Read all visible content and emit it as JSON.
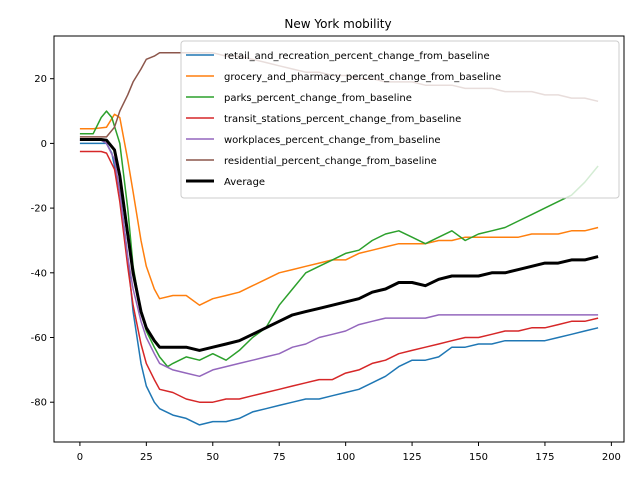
{
  "chart_data": {
    "type": "line",
    "title": "New York mobility",
    "xlabel": "",
    "ylabel": "",
    "xlim": [
      -9.75,
      204.75
    ],
    "ylim": [
      -92.3,
      33.2
    ],
    "xticks": [
      0,
      25,
      50,
      75,
      100,
      125,
      150,
      175,
      200
    ],
    "yticks": [
      -80,
      -60,
      -40,
      -20,
      0,
      20
    ],
    "grid": false,
    "legend_position": "top-right",
    "series": [
      {
        "name": "retail_and_recreation_percent_change_from_baseline",
        "color": "#1f77b4",
        "points": [
          [
            0,
            0
          ],
          [
            10,
            0
          ],
          [
            12,
            -3
          ],
          [
            15,
            -15
          ],
          [
            18,
            -35
          ],
          [
            20,
            -52
          ],
          [
            23,
            -68
          ],
          [
            25,
            -75
          ],
          [
            28,
            -80
          ],
          [
            30,
            -82
          ],
          [
            35,
            -84
          ],
          [
            40,
            -85
          ],
          [
            45,
            -87
          ],
          [
            50,
            -86
          ],
          [
            55,
            -86
          ],
          [
            60,
            -85
          ],
          [
            65,
            -83
          ],
          [
            70,
            -82
          ],
          [
            75,
            -81
          ],
          [
            80,
            -80
          ],
          [
            85,
            -79
          ],
          [
            90,
            -79
          ],
          [
            95,
            -78
          ],
          [
            100,
            -77
          ],
          [
            105,
            -76
          ],
          [
            110,
            -74
          ],
          [
            115,
            -72
          ],
          [
            120,
            -69
          ],
          [
            125,
            -67
          ],
          [
            130,
            -67
          ],
          [
            135,
            -66
          ],
          [
            140,
            -63
          ],
          [
            145,
            -63
          ],
          [
            150,
            -62
          ],
          [
            155,
            -62
          ],
          [
            160,
            -61
          ],
          [
            165,
            -61
          ],
          [
            170,
            -61
          ],
          [
            175,
            -61
          ],
          [
            180,
            -60
          ],
          [
            185,
            -59
          ],
          [
            190,
            -58
          ],
          [
            195,
            -57
          ]
        ]
      },
      {
        "name": "grocery_and_pharmacy_percent_change_from_baseline",
        "color": "#ff7f0e",
        "points": [
          [
            0,
            4.5
          ],
          [
            5,
            4.5
          ],
          [
            10,
            5
          ],
          [
            13,
            9
          ],
          [
            15,
            8
          ],
          [
            18,
            -5
          ],
          [
            20,
            -15
          ],
          [
            23,
            -30
          ],
          [
            25,
            -38
          ],
          [
            28,
            -45
          ],
          [
            30,
            -48
          ],
          [
            35,
            -47
          ],
          [
            40,
            -47
          ],
          [
            45,
            -50
          ],
          [
            50,
            -48
          ],
          [
            55,
            -47
          ],
          [
            60,
            -46
          ],
          [
            65,
            -44
          ],
          [
            70,
            -42
          ],
          [
            75,
            -40
          ],
          [
            80,
            -39
          ],
          [
            85,
            -38
          ],
          [
            90,
            -37
          ],
          [
            95,
            -36
          ],
          [
            100,
            -36
          ],
          [
            105,
            -34
          ],
          [
            110,
            -33
          ],
          [
            115,
            -32
          ],
          [
            120,
            -31
          ],
          [
            125,
            -31
          ],
          [
            130,
            -31
          ],
          [
            135,
            -30
          ],
          [
            140,
            -30
          ],
          [
            145,
            -29
          ],
          [
            150,
            -29
          ],
          [
            155,
            -29
          ],
          [
            160,
            -29
          ],
          [
            165,
            -29
          ],
          [
            170,
            -28
          ],
          [
            175,
            -28
          ],
          [
            180,
            -28
          ],
          [
            185,
            -27
          ],
          [
            190,
            -27
          ],
          [
            195,
            -26
          ]
        ]
      },
      {
        "name": "parks_percent_change_from_baseline",
        "color": "#2ca02c",
        "points": [
          [
            0,
            3
          ],
          [
            5,
            3
          ],
          [
            8,
            8
          ],
          [
            10,
            10
          ],
          [
            12,
            8
          ],
          [
            15,
            0
          ],
          [
            18,
            -20
          ],
          [
            20,
            -38
          ],
          [
            23,
            -52
          ],
          [
            25,
            -58
          ],
          [
            28,
            -63
          ],
          [
            30,
            -66
          ],
          [
            33,
            -69
          ],
          [
            35,
            -68
          ],
          [
            40,
            -66
          ],
          [
            45,
            -67
          ],
          [
            50,
            -65
          ],
          [
            55,
            -67
          ],
          [
            60,
            -64
          ],
          [
            65,
            -60
          ],
          [
            70,
            -57
          ],
          [
            75,
            -50
          ],
          [
            80,
            -45
          ],
          [
            85,
            -40
          ],
          [
            90,
            -38
          ],
          [
            95,
            -36
          ],
          [
            100,
            -34
          ],
          [
            105,
            -33
          ],
          [
            110,
            -30
          ],
          [
            115,
            -28
          ],
          [
            120,
            -27
          ],
          [
            125,
            -29
          ],
          [
            130,
            -31
          ],
          [
            135,
            -29
          ],
          [
            140,
            -27
          ],
          [
            145,
            -30
          ],
          [
            150,
            -28
          ],
          [
            155,
            -27
          ],
          [
            160,
            -26
          ],
          [
            165,
            -24
          ],
          [
            170,
            -22
          ],
          [
            175,
            -20
          ],
          [
            180,
            -18
          ],
          [
            185,
            -16
          ],
          [
            190,
            -12
          ],
          [
            195,
            -7
          ]
        ]
      },
      {
        "name": "transit_stations_percent_change_from_baseline",
        "color": "#d62728",
        "points": [
          [
            0,
            -2.5
          ],
          [
            8,
            -2.5
          ],
          [
            10,
            -3
          ],
          [
            13,
            -8
          ],
          [
            15,
            -18
          ],
          [
            18,
            -38
          ],
          [
            20,
            -50
          ],
          [
            23,
            -62
          ],
          [
            25,
            -68
          ],
          [
            28,
            -73
          ],
          [
            30,
            -76
          ],
          [
            35,
            -77
          ],
          [
            40,
            -79
          ],
          [
            45,
            -80
          ],
          [
            50,
            -80
          ],
          [
            55,
            -79
          ],
          [
            60,
            -79
          ],
          [
            65,
            -78
          ],
          [
            70,
            -77
          ],
          [
            75,
            -76
          ],
          [
            80,
            -75
          ],
          [
            85,
            -74
          ],
          [
            90,
            -73
          ],
          [
            95,
            -73
          ],
          [
            100,
            -71
          ],
          [
            105,
            -70
          ],
          [
            110,
            -68
          ],
          [
            115,
            -67
          ],
          [
            120,
            -65
          ],
          [
            125,
            -64
          ],
          [
            130,
            -63
          ],
          [
            135,
            -62
          ],
          [
            140,
            -61
          ],
          [
            145,
            -60
          ],
          [
            150,
            -60
          ],
          [
            155,
            -59
          ],
          [
            160,
            -58
          ],
          [
            165,
            -58
          ],
          [
            170,
            -57
          ],
          [
            175,
            -57
          ],
          [
            180,
            -56
          ],
          [
            185,
            -55
          ],
          [
            190,
            -55
          ],
          [
            195,
            -54
          ]
        ]
      },
      {
        "name": "workplaces_percent_change_from_baseline",
        "color": "#9467bd",
        "points": [
          [
            0,
            1
          ],
          [
            8,
            1
          ],
          [
            10,
            0
          ],
          [
            13,
            -5
          ],
          [
            15,
            -15
          ],
          [
            18,
            -35
          ],
          [
            20,
            -45
          ],
          [
            23,
            -55
          ],
          [
            25,
            -60
          ],
          [
            28,
            -65
          ],
          [
            30,
            -68
          ],
          [
            35,
            -70
          ],
          [
            40,
            -71
          ],
          [
            45,
            -72
          ],
          [
            50,
            -70
          ],
          [
            55,
            -69
          ],
          [
            60,
            -68
          ],
          [
            65,
            -67
          ],
          [
            70,
            -66
          ],
          [
            75,
            -65
          ],
          [
            80,
            -63
          ],
          [
            85,
            -62
          ],
          [
            90,
            -60
          ],
          [
            95,
            -59
          ],
          [
            100,
            -58
          ],
          [
            105,
            -56
          ],
          [
            110,
            -55
          ],
          [
            115,
            -54
          ],
          [
            120,
            -54
          ],
          [
            125,
            -54
          ],
          [
            130,
            -54
          ],
          [
            135,
            -53
          ],
          [
            140,
            -53
          ],
          [
            145,
            -53
          ],
          [
            150,
            -53
          ],
          [
            155,
            -53
          ],
          [
            160,
            -53
          ],
          [
            165,
            -53
          ],
          [
            170,
            -53
          ],
          [
            175,
            -53
          ],
          [
            180,
            -53
          ],
          [
            185,
            -53
          ],
          [
            190,
            -53
          ],
          [
            195,
            -53
          ]
        ]
      },
      {
        "name": "residential_percent_change_from_baseline",
        "color": "#8c564b",
        "points": [
          [
            0,
            2
          ],
          [
            5,
            2
          ],
          [
            10,
            2
          ],
          [
            13,
            5
          ],
          [
            15,
            10
          ],
          [
            18,
            15
          ],
          [
            20,
            19
          ],
          [
            23,
            23
          ],
          [
            25,
            26
          ],
          [
            28,
            27
          ],
          [
            30,
            28
          ],
          [
            35,
            28
          ],
          [
            40,
            28
          ],
          [
            45,
            28
          ],
          [
            50,
            28
          ],
          [
            55,
            27
          ],
          [
            60,
            27
          ],
          [
            65,
            26
          ],
          [
            70,
            25
          ],
          [
            75,
            24
          ],
          [
            80,
            23
          ],
          [
            85,
            22
          ],
          [
            90,
            22
          ],
          [
            95,
            21
          ],
          [
            100,
            21
          ],
          [
            105,
            20
          ],
          [
            110,
            20
          ],
          [
            115,
            19
          ],
          [
            120,
            19
          ],
          [
            125,
            19
          ],
          [
            130,
            18
          ],
          [
            135,
            18
          ],
          [
            140,
            18
          ],
          [
            145,
            17
          ],
          [
            150,
            17
          ],
          [
            155,
            17
          ],
          [
            160,
            16
          ],
          [
            165,
            16
          ],
          [
            170,
            16
          ],
          [
            175,
            15
          ],
          [
            180,
            15
          ],
          [
            185,
            14
          ],
          [
            190,
            14
          ],
          [
            195,
            13
          ]
        ]
      },
      {
        "name": "Average",
        "color": "#000000",
        "bold": true,
        "points": [
          [
            0,
            1.2
          ],
          [
            8,
            1.2
          ],
          [
            10,
            1
          ],
          [
            13,
            -2
          ],
          [
            15,
            -10
          ],
          [
            18,
            -28
          ],
          [
            20,
            -40
          ],
          [
            23,
            -52
          ],
          [
            25,
            -57
          ],
          [
            28,
            -61
          ],
          [
            30,
            -63
          ],
          [
            35,
            -63
          ],
          [
            40,
            -63
          ],
          [
            45,
            -64
          ],
          [
            50,
            -63
          ],
          [
            55,
            -62
          ],
          [
            60,
            -61
          ],
          [
            65,
            -59
          ],
          [
            70,
            -57
          ],
          [
            75,
            -55
          ],
          [
            80,
            -53
          ],
          [
            85,
            -52
          ],
          [
            90,
            -51
          ],
          [
            95,
            -50
          ],
          [
            100,
            -49
          ],
          [
            105,
            -48
          ],
          [
            110,
            -46
          ],
          [
            115,
            -45
          ],
          [
            120,
            -43
          ],
          [
            125,
            -43
          ],
          [
            130,
            -44
          ],
          [
            135,
            -42
          ],
          [
            140,
            -41
          ],
          [
            145,
            -41
          ],
          [
            150,
            -41
          ],
          [
            155,
            -40
          ],
          [
            160,
            -40
          ],
          [
            165,
            -39
          ],
          [
            170,
            -38
          ],
          [
            175,
            -37
          ],
          [
            180,
            -37
          ],
          [
            185,
            -36
          ],
          [
            190,
            -36
          ],
          [
            195,
            -35
          ]
        ]
      }
    ]
  }
}
